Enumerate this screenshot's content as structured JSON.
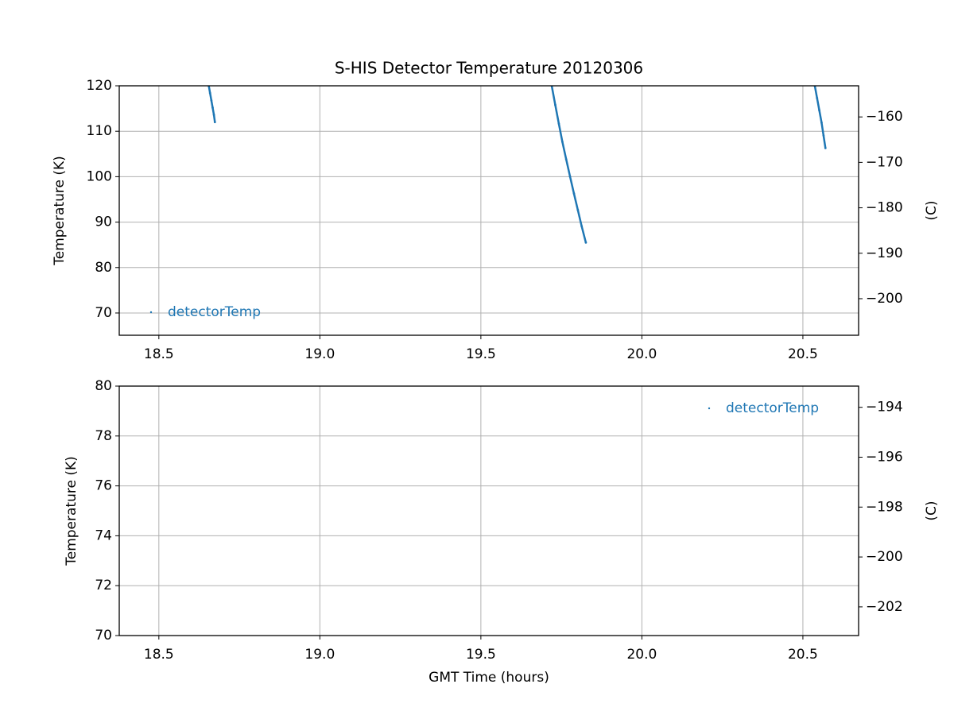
{
  "chart_data": [
    {
      "type": "scatter",
      "title": "S-HIS Detector Temperature 20120306",
      "y_label": "Temperature (K)",
      "y2_label": "(C)",
      "xlim": [
        18.377,
        20.673
      ],
      "ylim": [
        65.1,
        120
      ],
      "y2lim": [
        -208.05,
        -153.15
      ],
      "xticks": [
        18.5,
        {
          "value": 19,
          "label": "19.0"
        },
        19.5,
        {
          "value": 20,
          "label": "20.0"
        },
        20.5
      ],
      "yticks": [
        70,
        80,
        90,
        100,
        110,
        120
      ],
      "y2ticks": [
        {
          "value": -200,
          "label": "−200"
        },
        {
          "value": -190,
          "label": "−190"
        },
        {
          "value": -180,
          "label": "−180"
        },
        {
          "value": -170,
          "label": "−170"
        },
        {
          "value": -160,
          "label": "−160"
        }
      ],
      "grid": true,
      "legend": "lower left",
      "series": [
        {
          "name": "detectorTemp",
          "color": "#1f77b4",
          "x": [
            18.655,
            18.659,
            18.663,
            18.667,
            18.671,
            18.674,
            null,
            19.72,
            19.731,
            19.742,
            19.753,
            19.765,
            19.777,
            19.789,
            19.801,
            19.813,
            19.826,
            null,
            20.537,
            20.544,
            20.551,
            20.558,
            20.564,
            20.57
          ],
          "values": [
            120,
            118.4,
            116.8,
            115.2,
            113.6,
            112,
            null,
            120,
            115.8,
            111.7,
            107.7,
            103.8,
            100,
            96.3,
            92.7,
            89.1,
            85.5,
            null,
            120,
            117.3,
            114.6,
            111.9,
            109.1,
            106.3
          ]
        }
      ]
    },
    {
      "type": "scatter",
      "y_label": "Temperature (K)",
      "y2_label": "(C)",
      "x_label": "GMT Time (hours)",
      "xlim": [
        18.377,
        20.673
      ],
      "ylim": [
        70,
        80
      ],
      "y2lim": [
        -203.15,
        -193.15
      ],
      "xticks": [
        18.5,
        {
          "value": 19,
          "label": "19.0"
        },
        19.5,
        {
          "value": 20,
          "label": "20.0"
        },
        20.5
      ],
      "yticks": [
        70,
        72,
        74,
        76,
        78,
        80
      ],
      "y2ticks": [
        {
          "value": -202,
          "label": "−202"
        },
        {
          "value": -200,
          "label": "−200"
        },
        {
          "value": -198,
          "label": "−198"
        },
        {
          "value": -196,
          "label": "−196"
        },
        {
          "value": -194,
          "label": "−194"
        }
      ],
      "grid": true,
      "legend": "upper right",
      "series": [
        {
          "name": "detectorTemp",
          "color": "#1f77b4",
          "x": [],
          "values": []
        }
      ]
    }
  ]
}
